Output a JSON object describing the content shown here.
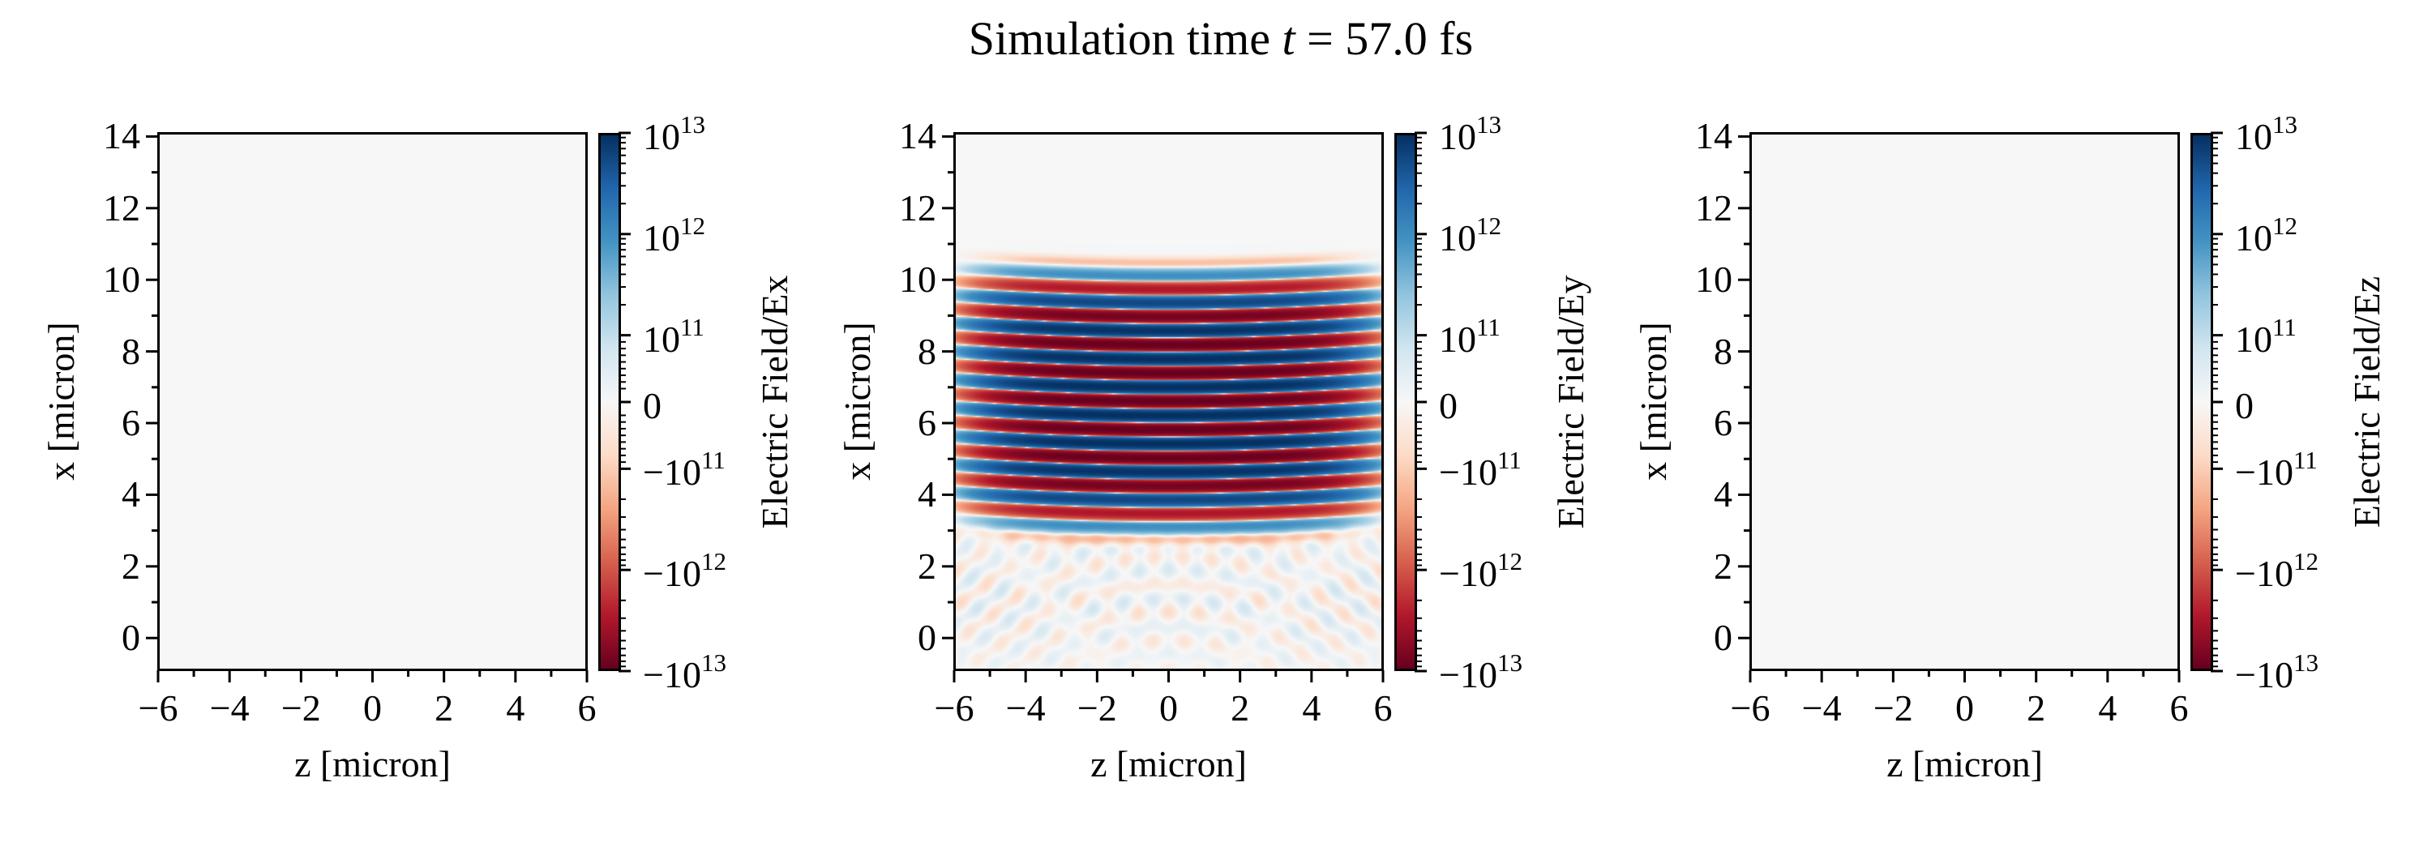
{
  "title": {
    "prefix": "Simulation time ",
    "var": "t",
    "suffix": " = 57.0 fs"
  },
  "colors": {
    "background": "#f7f7f7",
    "cmap": [
      "#053061",
      "#2166ac",
      "#4393c3",
      "#92c5de",
      "#d1e5f0",
      "#f7f7f7",
      "#fddbc7",
      "#f4a582",
      "#d6604d",
      "#b2182b",
      "#67001f"
    ]
  },
  "chart_data": [
    {
      "type": "heatmap",
      "component": "Ex",
      "xlabel": "z [micron]",
      "ylabel": "x [micron]",
      "xlim": [
        -6,
        6
      ],
      "ylim": [
        -0.9,
        14.1
      ],
      "xticks": [
        -6,
        -4,
        -2,
        0,
        2,
        4,
        6
      ],
      "xtick_labels": [
        "−6",
        "−4",
        "−2",
        "0",
        "2",
        "4",
        "6"
      ],
      "yticks": [
        0,
        2,
        4,
        6,
        8,
        10,
        12,
        14
      ],
      "ytick_labels": [
        "0",
        "2",
        "4",
        "6",
        "8",
        "10",
        "12",
        "14"
      ],
      "field": "zero",
      "colorbar": {
        "label": "Electric Field/Ex",
        "scale": "symlog",
        "linthresh": 100000000000.0,
        "linscale": 0.66,
        "range": [
          -10000000000000.0,
          10000000000000.0
        ],
        "ticks": [
          10000000000000.0,
          1000000000000.0,
          100000000000.0,
          0,
          -100000000000.0,
          -1000000000000.0,
          -10000000000000.0
        ],
        "tick_labels": [
          {
            "sign": "",
            "base": "10",
            "exp": "13"
          },
          {
            "sign": "",
            "base": "10",
            "exp": "12"
          },
          {
            "sign": "",
            "base": "10",
            "exp": "11"
          },
          {
            "sign": "",
            "base": "0",
            "exp": ""
          },
          {
            "sign": "−",
            "base": "10",
            "exp": "11"
          },
          {
            "sign": "−",
            "base": "10",
            "exp": "12"
          },
          {
            "sign": "−",
            "base": "10",
            "exp": "13"
          }
        ]
      }
    },
    {
      "type": "heatmap",
      "component": "Ey",
      "xlabel": "z [micron]",
      "ylabel": "x [micron]",
      "xlim": [
        -6,
        6
      ],
      "ylim": [
        -0.9,
        14.1
      ],
      "xticks": [
        -6,
        -4,
        -2,
        0,
        2,
        4,
        6
      ],
      "xtick_labels": [
        "−6",
        "−4",
        "−2",
        "0",
        "2",
        "4",
        "6"
      ],
      "yticks": [
        0,
        2,
        4,
        6,
        8,
        10,
        12,
        14
      ],
      "ytick_labels": [
        "0",
        "2",
        "4",
        "6",
        "8",
        "10",
        "12",
        "14"
      ],
      "field": "laser_pulse",
      "model": {
        "peak_amplitude": 10000000000000.0,
        "wavelength_micron": 0.79,
        "envelope_center_x": 6.6,
        "envelope_halfwidth_x": 4.1,
        "envelope_halfwidth_z": 6.5,
        "phase_ref_x": 7.0,
        "front_curvature": 0.006,
        "diffraction_amplitude": 60000000000.0
      },
      "colorbar": {
        "label": "Electric Field/Ey",
        "scale": "symlog",
        "linthresh": 100000000000.0,
        "linscale": 0.66,
        "range": [
          -10000000000000.0,
          10000000000000.0
        ],
        "ticks": [
          10000000000000.0,
          1000000000000.0,
          100000000000.0,
          0,
          -100000000000.0,
          -1000000000000.0,
          -10000000000000.0
        ],
        "tick_labels": [
          {
            "sign": "",
            "base": "10",
            "exp": "13"
          },
          {
            "sign": "",
            "base": "10",
            "exp": "12"
          },
          {
            "sign": "",
            "base": "10",
            "exp": "11"
          },
          {
            "sign": "",
            "base": "0",
            "exp": ""
          },
          {
            "sign": "−",
            "base": "10",
            "exp": "11"
          },
          {
            "sign": "−",
            "base": "10",
            "exp": "12"
          },
          {
            "sign": "−",
            "base": "10",
            "exp": "13"
          }
        ]
      }
    },
    {
      "type": "heatmap",
      "component": "Ez",
      "xlabel": "z [micron]",
      "ylabel": "x [micron]",
      "xlim": [
        -6,
        6
      ],
      "ylim": [
        -0.9,
        14.1
      ],
      "xticks": [
        -6,
        -4,
        -2,
        0,
        2,
        4,
        6
      ],
      "xtick_labels": [
        "−6",
        "−4",
        "−2",
        "0",
        "2",
        "4",
        "6"
      ],
      "yticks": [
        0,
        2,
        4,
        6,
        8,
        10,
        12,
        14
      ],
      "ytick_labels": [
        "0",
        "2",
        "4",
        "6",
        "8",
        "10",
        "12",
        "14"
      ],
      "field": "zero",
      "colorbar": {
        "label": "Electric Field/Ez",
        "scale": "symlog",
        "linthresh": 100000000000.0,
        "linscale": 0.66,
        "range": [
          -10000000000000.0,
          10000000000000.0
        ],
        "ticks": [
          10000000000000.0,
          1000000000000.0,
          100000000000.0,
          0,
          -100000000000.0,
          -1000000000000.0,
          -10000000000000.0
        ],
        "tick_labels": [
          {
            "sign": "",
            "base": "10",
            "exp": "13"
          },
          {
            "sign": "",
            "base": "10",
            "exp": "12"
          },
          {
            "sign": "",
            "base": "10",
            "exp": "11"
          },
          {
            "sign": "",
            "base": "0",
            "exp": ""
          },
          {
            "sign": "−",
            "base": "10",
            "exp": "11"
          },
          {
            "sign": "−",
            "base": "10",
            "exp": "12"
          },
          {
            "sign": "−",
            "base": "10",
            "exp": "13"
          }
        ]
      }
    }
  ]
}
